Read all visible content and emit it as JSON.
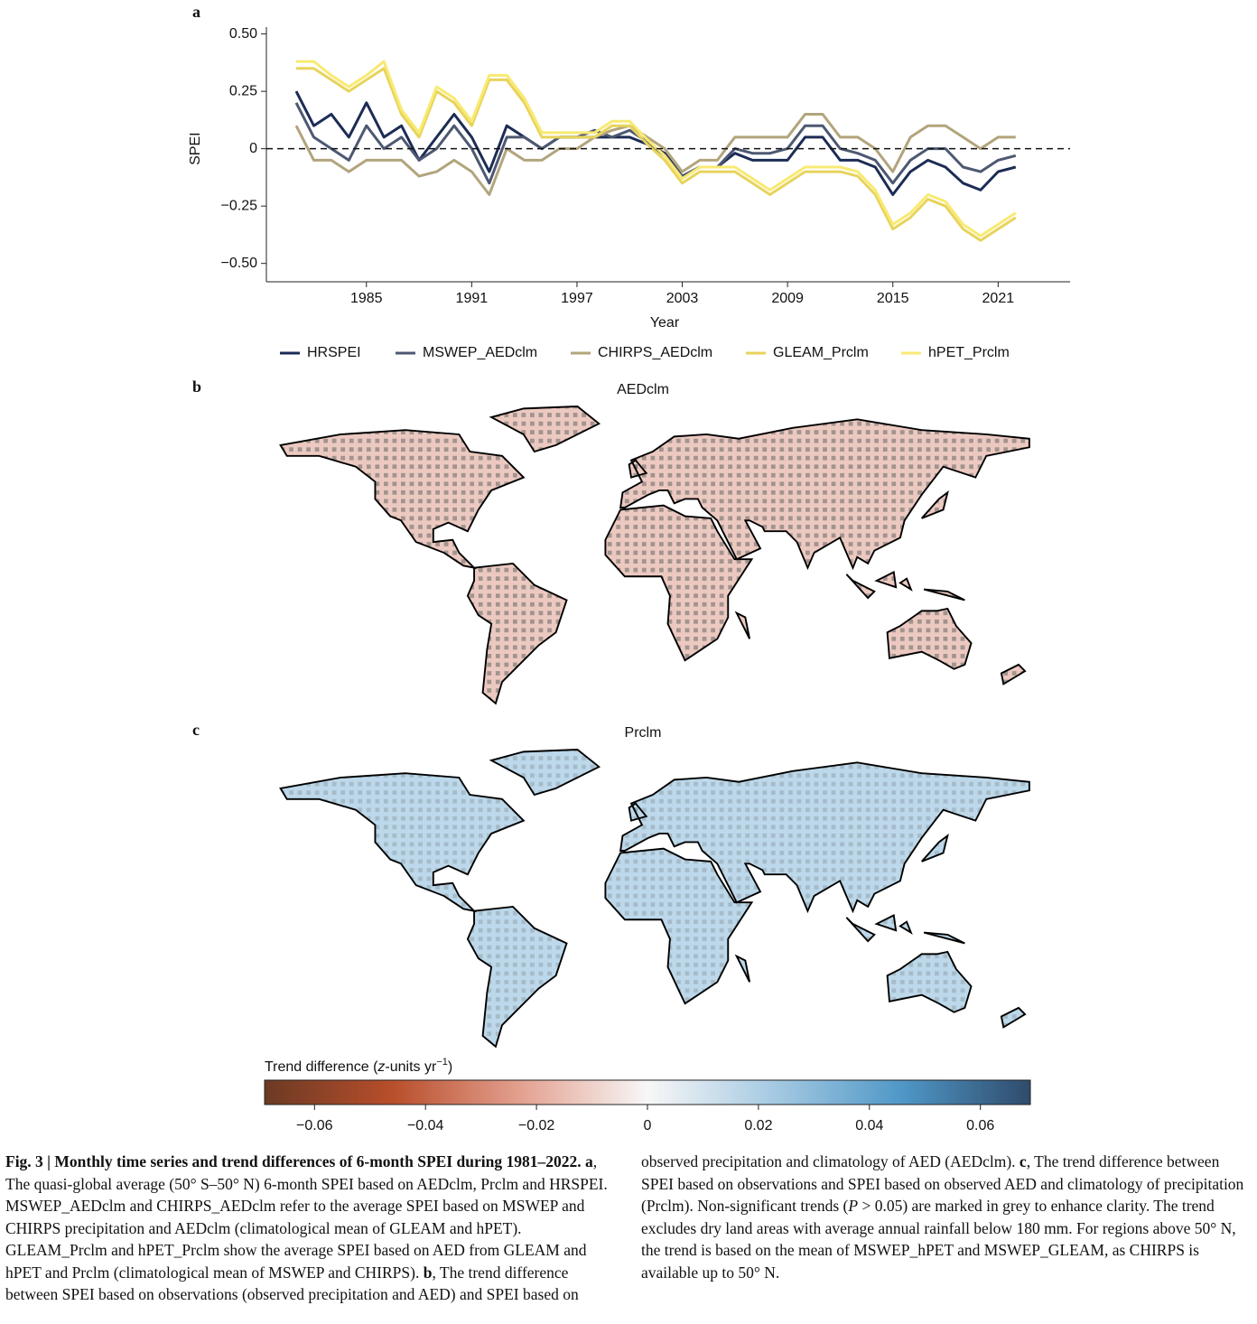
{
  "chart_data": [
    {
      "type": "line",
      "panel": "a",
      "ylabel": "SPEI",
      "xlabel": "Year",
      "x": [
        1981,
        1982,
        1983,
        1984,
        1985,
        1986,
        1987,
        1988,
        1989,
        1990,
        1991,
        1992,
        1993,
        1994,
        1995,
        1996,
        1997,
        1998,
        1999,
        2000,
        2001,
        2002,
        2003,
        2004,
        2005,
        2006,
        2007,
        2008,
        2009,
        2010,
        2011,
        2012,
        2013,
        2014,
        2015,
        2016,
        2017,
        2018,
        2019,
        2020,
        2021,
        2022
      ],
      "series": [
        {
          "name": "HRSPEI",
          "color": "#1c2c55",
          "values": [
            0.25,
            0.1,
            0.15,
            0.05,
            0.2,
            0.05,
            0.1,
            -0.05,
            0.05,
            0.15,
            0.05,
            -0.1,
            0.1,
            0.05,
            0,
            0.05,
            0.05,
            0.05,
            0.05,
            0.05,
            0.02,
            -0.02,
            -0.12,
            -0.08,
            -0.08,
            -0.02,
            -0.05,
            -0.05,
            -0.05,
            0.05,
            0.05,
            -0.05,
            -0.05,
            -0.08,
            -0.2,
            -0.1,
            -0.05,
            -0.08,
            -0.15,
            -0.18,
            -0.1,
            -0.08
          ]
        },
        {
          "name": "MSWEP_AEDclm",
          "color": "#4d5872",
          "values": [
            0.2,
            0.05,
            0,
            -0.05,
            0.1,
            0,
            0.05,
            -0.05,
            0,
            0.1,
            0,
            -0.15,
            0.05,
            0.05,
            0,
            0.05,
            0.05,
            0.08,
            0.05,
            0.08,
            0.03,
            -0.03,
            -0.12,
            -0.08,
            -0.08,
            0,
            -0.02,
            -0.02,
            0,
            0.1,
            0.1,
            0,
            -0.02,
            -0.05,
            -0.15,
            -0.05,
            0,
            0,
            -0.08,
            -0.1,
            -0.05,
            -0.03
          ]
        },
        {
          "name": "CHIRPS_AEDclm",
          "color": "#b2a47c",
          "values": [
            0.1,
            -0.05,
            -0.05,
            -0.1,
            -0.05,
            -0.05,
            -0.05,
            -0.12,
            -0.1,
            -0.05,
            -0.1,
            -0.2,
            0,
            -0.05,
            -0.05,
            0,
            0,
            0.05,
            0.08,
            0.1,
            0.05,
            0,
            -0.1,
            -0.05,
            -0.05,
            0.05,
            0.05,
            0.05,
            0.05,
            0.15,
            0.15,
            0.05,
            0.05,
            0,
            -0.1,
            0.05,
            0.1,
            0.1,
            0.05,
            0,
            0.05,
            0.05
          ]
        },
        {
          "name": "GLEAM_Prclm",
          "color": "#e8d35c",
          "values": [
            0.35,
            0.35,
            0.3,
            0.25,
            0.3,
            0.35,
            0.15,
            0.05,
            0.25,
            0.2,
            0.1,
            0.3,
            0.3,
            0.2,
            0.05,
            0.05,
            0.05,
            0.05,
            0.1,
            0.1,
            0.02,
            -0.05,
            -0.15,
            -0.1,
            -0.1,
            -0.1,
            -0.15,
            -0.2,
            -0.15,
            -0.1,
            -0.1,
            -0.1,
            -0.12,
            -0.2,
            -0.35,
            -0.3,
            -0.22,
            -0.25,
            -0.35,
            -0.4,
            -0.35,
            -0.3
          ]
        },
        {
          "name": "hPET_Prclm",
          "color": "#f8ea72",
          "values": [
            0.38,
            0.38,
            0.32,
            0.27,
            0.32,
            0.38,
            0.17,
            0.07,
            0.27,
            0.22,
            0.12,
            0.32,
            0.32,
            0.22,
            0.07,
            0.07,
            0.07,
            0.07,
            0.12,
            0.12,
            0.04,
            -0.03,
            -0.13,
            -0.08,
            -0.08,
            -0.08,
            -0.13,
            -0.18,
            -0.13,
            -0.08,
            -0.08,
            -0.08,
            -0.1,
            -0.18,
            -0.33,
            -0.28,
            -0.2,
            -0.23,
            -0.33,
            -0.38,
            -0.33,
            -0.28
          ]
        }
      ],
      "xlim": [
        1979.3,
        2025.1
      ],
      "xticks": [
        1985,
        1991,
        1997,
        2003,
        2009,
        2015,
        2021
      ],
      "ylim": [
        -0.58,
        0.53
      ],
      "yticks": [
        {
          "value": -0.5,
          "label": "−0.50"
        },
        {
          "value": -0.25,
          "label": "−0.25"
        },
        0,
        {
          "value": 0.25,
          "label": "0.25"
        },
        {
          "value": 0.5,
          "label": "0.50"
        }
      ],
      "reference_line": 0,
      "legend": "bottom"
    },
    {
      "type": "map",
      "panel": "b",
      "title": "AEDclm",
      "color": "#ecc9c0"
    },
    {
      "type": "map",
      "panel": "c",
      "title": "Prclm",
      "color": "#bcd8ea"
    }
  ],
  "colorbar": {
    "label": [
      "Trend difference (",
      "z",
      "-units yr",
      "−1",
      ")"
    ],
    "lim": [
      -0.069,
      0.069
    ],
    "colors": [
      "#6b3a24",
      "#b84e2b",
      "#e3a08f",
      "#f7f7f7",
      "#a5c9e2",
      "#4f97c7",
      "#2f4b6b"
    ],
    "ticks": [
      {
        "value": -0.06,
        "label": "−0.06"
      },
      {
        "value": -0.04,
        "label": "−0.04"
      },
      {
        "value": -0.02,
        "label": "−0.02"
      },
      0,
      {
        "value": 0.02,
        "label": "0.02"
      },
      {
        "value": 0.04,
        "label": "0.04"
      },
      {
        "value": 0.06,
        "label": "0.06"
      }
    ]
  },
  "caption": [
    {
      "text": "Fig. 3 | Monthly time series and trend differences of 6-month SPEI during 1981–2022. a",
      "style": "bold"
    },
    {
      "text": ", The quasi-global average (50° S–50° N) 6-month SPEI based on AEDclm, Prclm and HRSPEI. MSWEP_AEDclm and CHIRPS_AEDclm refer to the average SPEI based on MSWEP and CHIRPS precipitation and AEDclm (climatological mean of GLEAM and hPET). GLEAM_Prclm and hPET_Prclm show the average SPEI based on AED from GLEAM and hPET and Prclm (climatological mean of MSWEP and CHIRPS). "
    },
    {
      "text": "b",
      "style": "bold"
    },
    {
      "text": ", The trend difference between SPEI based on observations (observed precipitation and AED) and SPEI based on observed precipitation and climatology of AED (AEDclm). "
    },
    {
      "text": "c",
      "style": "bold"
    },
    {
      "text": ", The trend difference between SPEI based on observations and SPEI based on observed AED and climatology of precipitation (Prclm). Non-significant trends ("
    },
    {
      "text": "P",
      "style": "italic"
    },
    {
      "text": " > 0.05) are marked in grey to enhance clarity. The trend excludes dry land areas with average annual rainfall below 180 mm. For regions above 50° N, the trend is based on the mean of MSWEP_hPET and MSWEP_GLEAM, as CHIRPS is available up to 50° N."
    }
  ]
}
